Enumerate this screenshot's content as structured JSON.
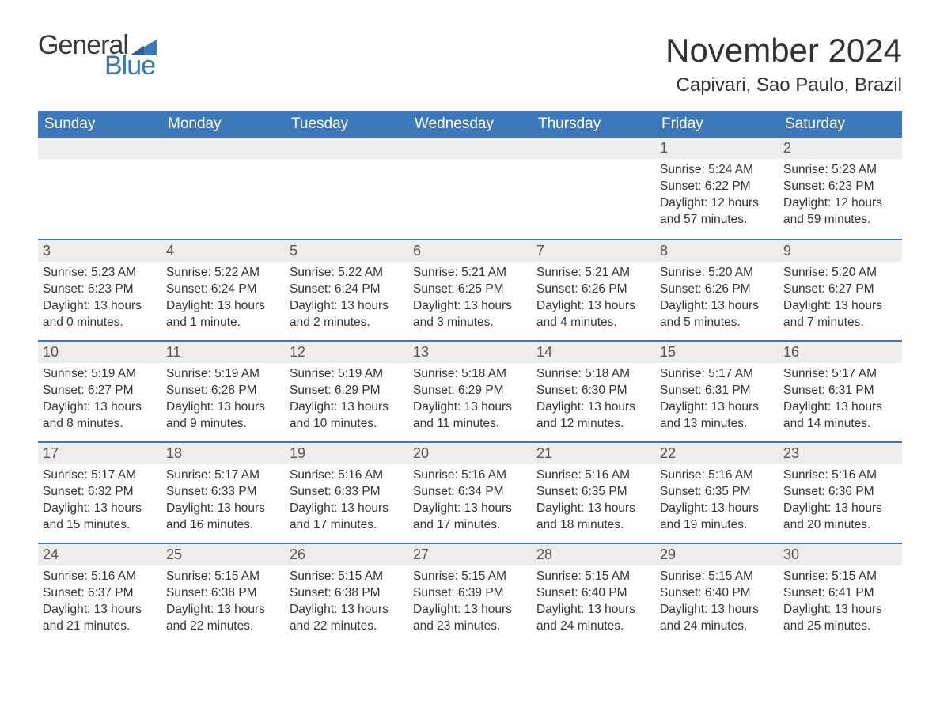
{
  "brand": {
    "word1": "General",
    "word2": "Blue",
    "triangle_color": "#3d78b8"
  },
  "title": "November 2024",
  "location": "Capivari, Sao Paulo, Brazil",
  "colors": {
    "header_bg": "#3d78b8",
    "header_text": "#ffffff",
    "daynum_bg": "#ededed",
    "row_border": "#3d78b8",
    "body_text": "#333333",
    "page_bg": "#ffffff"
  },
  "typography": {
    "title_fontsize": 42,
    "location_fontsize": 24,
    "weekday_fontsize": 19,
    "daynum_fontsize": 18,
    "body_fontsize": 15.5
  },
  "weekdays": [
    "Sunday",
    "Monday",
    "Tuesday",
    "Wednesday",
    "Thursday",
    "Friday",
    "Saturday"
  ],
  "weeks": [
    [
      null,
      null,
      null,
      null,
      null,
      {
        "n": "1",
        "sunrise": "Sunrise: 5:24 AM",
        "sunset": "Sunset: 6:22 PM",
        "daylight": "Daylight: 12 hours and 57 minutes."
      },
      {
        "n": "2",
        "sunrise": "Sunrise: 5:23 AM",
        "sunset": "Sunset: 6:23 PM",
        "daylight": "Daylight: 12 hours and 59 minutes."
      }
    ],
    [
      {
        "n": "3",
        "sunrise": "Sunrise: 5:23 AM",
        "sunset": "Sunset: 6:23 PM",
        "daylight": "Daylight: 13 hours and 0 minutes."
      },
      {
        "n": "4",
        "sunrise": "Sunrise: 5:22 AM",
        "sunset": "Sunset: 6:24 PM",
        "daylight": "Daylight: 13 hours and 1 minute."
      },
      {
        "n": "5",
        "sunrise": "Sunrise: 5:22 AM",
        "sunset": "Sunset: 6:24 PM",
        "daylight": "Daylight: 13 hours and 2 minutes."
      },
      {
        "n": "6",
        "sunrise": "Sunrise: 5:21 AM",
        "sunset": "Sunset: 6:25 PM",
        "daylight": "Daylight: 13 hours and 3 minutes."
      },
      {
        "n": "7",
        "sunrise": "Sunrise: 5:21 AM",
        "sunset": "Sunset: 6:26 PM",
        "daylight": "Daylight: 13 hours and 4 minutes."
      },
      {
        "n": "8",
        "sunrise": "Sunrise: 5:20 AM",
        "sunset": "Sunset: 6:26 PM",
        "daylight": "Daylight: 13 hours and 5 minutes."
      },
      {
        "n": "9",
        "sunrise": "Sunrise: 5:20 AM",
        "sunset": "Sunset: 6:27 PM",
        "daylight": "Daylight: 13 hours and 7 minutes."
      }
    ],
    [
      {
        "n": "10",
        "sunrise": "Sunrise: 5:19 AM",
        "sunset": "Sunset: 6:27 PM",
        "daylight": "Daylight: 13 hours and 8 minutes."
      },
      {
        "n": "11",
        "sunrise": "Sunrise: 5:19 AM",
        "sunset": "Sunset: 6:28 PM",
        "daylight": "Daylight: 13 hours and 9 minutes."
      },
      {
        "n": "12",
        "sunrise": "Sunrise: 5:19 AM",
        "sunset": "Sunset: 6:29 PM",
        "daylight": "Daylight: 13 hours and 10 minutes."
      },
      {
        "n": "13",
        "sunrise": "Sunrise: 5:18 AM",
        "sunset": "Sunset: 6:29 PM",
        "daylight": "Daylight: 13 hours and 11 minutes."
      },
      {
        "n": "14",
        "sunrise": "Sunrise: 5:18 AM",
        "sunset": "Sunset: 6:30 PM",
        "daylight": "Daylight: 13 hours and 12 minutes."
      },
      {
        "n": "15",
        "sunrise": "Sunrise: 5:17 AM",
        "sunset": "Sunset: 6:31 PM",
        "daylight": "Daylight: 13 hours and 13 minutes."
      },
      {
        "n": "16",
        "sunrise": "Sunrise: 5:17 AM",
        "sunset": "Sunset: 6:31 PM",
        "daylight": "Daylight: 13 hours and 14 minutes."
      }
    ],
    [
      {
        "n": "17",
        "sunrise": "Sunrise: 5:17 AM",
        "sunset": "Sunset: 6:32 PM",
        "daylight": "Daylight: 13 hours and 15 minutes."
      },
      {
        "n": "18",
        "sunrise": "Sunrise: 5:17 AM",
        "sunset": "Sunset: 6:33 PM",
        "daylight": "Daylight: 13 hours and 16 minutes."
      },
      {
        "n": "19",
        "sunrise": "Sunrise: 5:16 AM",
        "sunset": "Sunset: 6:33 PM",
        "daylight": "Daylight: 13 hours and 17 minutes."
      },
      {
        "n": "20",
        "sunrise": "Sunrise: 5:16 AM",
        "sunset": "Sunset: 6:34 PM",
        "daylight": "Daylight: 13 hours and 17 minutes."
      },
      {
        "n": "21",
        "sunrise": "Sunrise: 5:16 AM",
        "sunset": "Sunset: 6:35 PM",
        "daylight": "Daylight: 13 hours and 18 minutes."
      },
      {
        "n": "22",
        "sunrise": "Sunrise: 5:16 AM",
        "sunset": "Sunset: 6:35 PM",
        "daylight": "Daylight: 13 hours and 19 minutes."
      },
      {
        "n": "23",
        "sunrise": "Sunrise: 5:16 AM",
        "sunset": "Sunset: 6:36 PM",
        "daylight": "Daylight: 13 hours and 20 minutes."
      }
    ],
    [
      {
        "n": "24",
        "sunrise": "Sunrise: 5:16 AM",
        "sunset": "Sunset: 6:37 PM",
        "daylight": "Daylight: 13 hours and 21 minutes."
      },
      {
        "n": "25",
        "sunrise": "Sunrise: 5:15 AM",
        "sunset": "Sunset: 6:38 PM",
        "daylight": "Daylight: 13 hours and 22 minutes."
      },
      {
        "n": "26",
        "sunrise": "Sunrise: 5:15 AM",
        "sunset": "Sunset: 6:38 PM",
        "daylight": "Daylight: 13 hours and 22 minutes."
      },
      {
        "n": "27",
        "sunrise": "Sunrise: 5:15 AM",
        "sunset": "Sunset: 6:39 PM",
        "daylight": "Daylight: 13 hours and 23 minutes."
      },
      {
        "n": "28",
        "sunrise": "Sunrise: 5:15 AM",
        "sunset": "Sunset: 6:40 PM",
        "daylight": "Daylight: 13 hours and 24 minutes."
      },
      {
        "n": "29",
        "sunrise": "Sunrise: 5:15 AM",
        "sunset": "Sunset: 6:40 PM",
        "daylight": "Daylight: 13 hours and 24 minutes."
      },
      {
        "n": "30",
        "sunrise": "Sunrise: 5:15 AM",
        "sunset": "Sunset: 6:41 PM",
        "daylight": "Daylight: 13 hours and 25 minutes."
      }
    ]
  ]
}
